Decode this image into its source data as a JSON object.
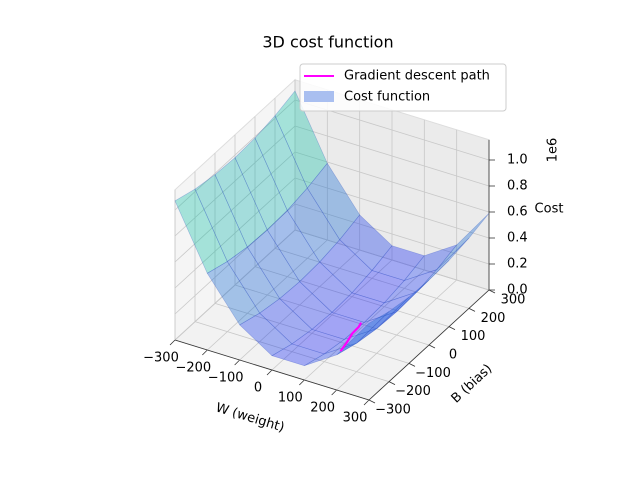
{
  "chart_data": {
    "type": "surface3d",
    "title": "3D cost function",
    "xlabel": "W (weight)",
    "ylabel": "B (bias)",
    "zlabel": "Cost",
    "z_offset_label": "1e6",
    "xlim": [
      -300,
      300
    ],
    "ylim": [
      -300,
      300
    ],
    "zlim": [
      0,
      1.1
    ],
    "xticks": [
      {
        "value": -300,
        "label": "−300"
      },
      {
        "value": -200,
        "label": "−200"
      },
      {
        "value": -100,
        "label": "−100"
      },
      0,
      100,
      200,
      300
    ],
    "yticks": [
      {
        "value": -300,
        "label": "−300"
      },
      {
        "value": -200,
        "label": "−200"
      },
      {
        "value": -100,
        "label": "−100"
      },
      0,
      100,
      200,
      300
    ],
    "zticks": [
      {
        "value": 0,
        "label": "0.0"
      },
      0.2,
      0.4,
      0.6,
      0.8,
      {
        "value": 1,
        "label": "1.0"
      }
    ],
    "grid": true,
    "legend": "upper right",
    "surface": {
      "name": "Cost function",
      "color": "#a9bff0",
      "w": [
        -300,
        -200,
        -100,
        0,
        100,
        200,
        300
      ],
      "b": [
        -300,
        -200,
        -100,
        0,
        100,
        200,
        300
      ],
      "z": [
        [
          1.07,
          1.02,
          0.99,
          0.98,
          0.99,
          1.02,
          1.07
        ],
        [
          0.59,
          0.54,
          0.51,
          0.5,
          0.51,
          0.54,
          0.59
        ],
        [
          0.27,
          0.22,
          0.19,
          0.18,
          0.19,
          0.22,
          0.27
        ],
        [
          0.11,
          0.06,
          0.03,
          0.02,
          0.03,
          0.06,
          0.11
        ],
        [
          0.11,
          0.06,
          0.03,
          0.02,
          0.03,
          0.06,
          0.11
        ],
        [
          0.27,
          0.22,
          0.19,
          0.18,
          0.19,
          0.22,
          0.27
        ],
        [
          0.59,
          0.54,
          0.51,
          0.5,
          0.51,
          0.54,
          0.59
        ]
      ]
    },
    "series": [
      {
        "name": "Gradient descent path",
        "color": "#ff00ff",
        "w": [
          150,
          120,
          100,
          95,
          90
        ],
        "b": [
          -200,
          -120,
          -60,
          -20,
          0
        ],
        "values": [
          0.12,
          0.05,
          0.02,
          0.01,
          0.01
        ]
      }
    ]
  }
}
